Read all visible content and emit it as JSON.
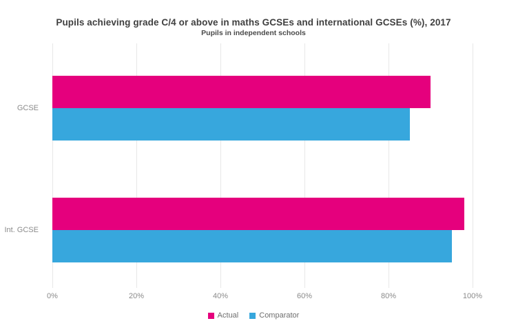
{
  "chart_data": {
    "type": "bar",
    "orientation": "horizontal",
    "title": "Pupils achieving grade C/4 or above in maths GCSEs and international GCSEs (%), 2017",
    "subtitle": "Pupils in independent schools",
    "categories": [
      "GCSE",
      "Int. GCSE"
    ],
    "series": [
      {
        "name": "Actual",
        "color": "#e5007d",
        "values": [
          90,
          98
        ]
      },
      {
        "name": "Comparator",
        "color": "#37a7dd",
        "values": [
          85,
          95
        ]
      }
    ],
    "xlabel": "",
    "ylabel": "",
    "xlim": [
      0,
      100
    ],
    "x_tick_values": [
      0,
      20,
      40,
      60,
      80,
      100
    ],
    "x_tick_labels": [
      "0%",
      "20%",
      "40%",
      "60%",
      "80%",
      "100%"
    ],
    "grid": "vertical-only",
    "grid_color": "#e7e7e7",
    "legend_position": "bottom",
    "background_color": "#ffffff"
  }
}
